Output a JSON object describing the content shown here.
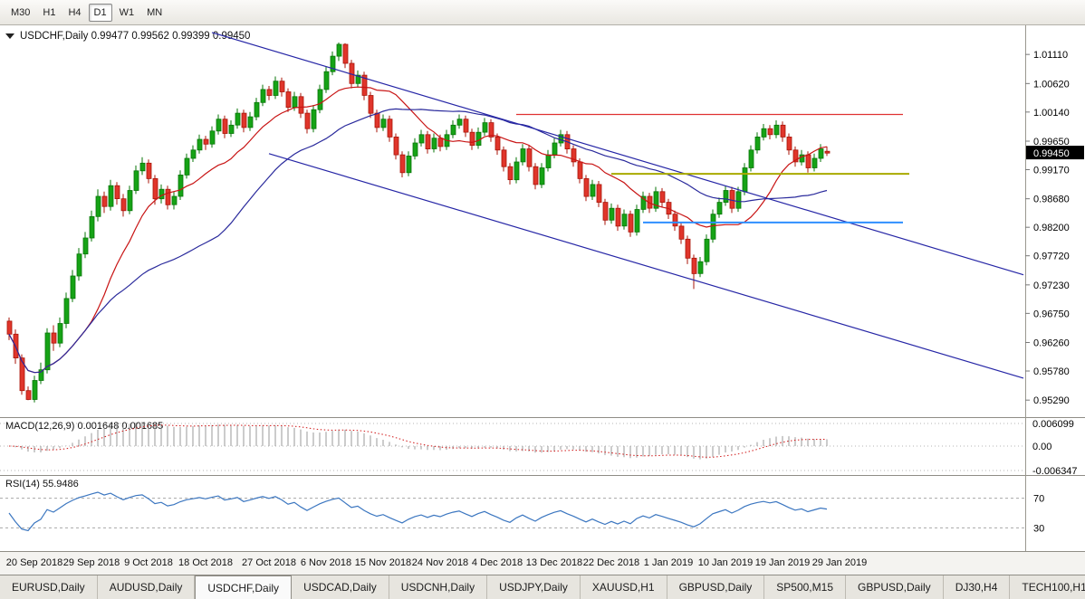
{
  "toolbar": {
    "timeframes": [
      {
        "label": "M30",
        "selected": false
      },
      {
        "label": "H1",
        "selected": false
      },
      {
        "label": "H4",
        "selected": false
      },
      {
        "label": "D1",
        "selected": true
      },
      {
        "label": "W1",
        "selected": false
      },
      {
        "label": "MN",
        "selected": false
      }
    ]
  },
  "chart": {
    "title": "USDCHF,Daily 0.99477 0.99562 0.99399 0.99450",
    "collapse_icon": "▼",
    "current_price": "0.99450",
    "price_axis_labels": [
      "1.01110",
      "1.00620",
      "1.00140",
      "0.99650",
      "0.99170",
      "0.98680",
      "0.98200",
      "0.97720",
      "0.97230",
      "0.96750",
      "0.96260",
      "0.95780",
      "0.95290"
    ],
    "colors": {
      "bull": "#16a316",
      "bull_border": "#077507",
      "bear": "#e0352b",
      "bear_border": "#a81408",
      "ma_fast": "#c81414",
      "ma_slow": "#2a2a9c",
      "trendline": "#2626a6",
      "resistance_line": "#e03232",
      "support_line_yellow": "#a8aa00",
      "support_line_blue": "#2f8fff",
      "macd_histogram": "#9a9a9a",
      "macd_signal": "#d01818",
      "rsi_line": "#3b76c0",
      "badge_bg": "#000000",
      "badge_text": "#ffffff"
    }
  },
  "macd_panel": {
    "label": "MACD(12,26,9) 0.001648 0.001685",
    "scale_labels": [
      "0.006099",
      "0.00",
      "-0.006347"
    ]
  },
  "rsi_panel": {
    "label": "RSI(14) 55.9486"
  },
  "date_axis": {
    "ticks": [
      {
        "label": "20 Sep 2018",
        "bar": 4
      },
      {
        "label": "29 Sep 2018",
        "bar": 13
      },
      {
        "label": "9 Oct 2018",
        "bar": 22
      },
      {
        "label": "18 Oct 2018",
        "bar": 31
      },
      {
        "label": "27 Oct 2018",
        "bar": 41
      },
      {
        "label": "6 Nov 2018",
        "bar": 50
      },
      {
        "label": "15 Nov 2018",
        "bar": 59
      },
      {
        "label": "24 Nov 2018",
        "bar": 68
      },
      {
        "label": "4 Dec 2018",
        "bar": 77
      },
      {
        "label": "13 Dec 2018",
        "bar": 86
      },
      {
        "label": "22 Dec 2018",
        "bar": 95
      },
      {
        "label": "1 Jan 2019",
        "bar": 104
      },
      {
        "label": "10 Jan 2019",
        "bar": 113
      },
      {
        "label": "19 Jan 2019",
        "bar": 122
      },
      {
        "label": "29 Jan 2019",
        "bar": 131
      }
    ]
  },
  "tabs": {
    "scroll_right_icon": "▶",
    "items": [
      {
        "label": "EURUSD,Daily",
        "selected": false
      },
      {
        "label": "AUDUSD,Daily",
        "selected": false
      },
      {
        "label": "USDCHF,Daily",
        "selected": true
      },
      {
        "label": "USDCAD,Daily",
        "selected": false
      },
      {
        "label": "USDCNH,Daily",
        "selected": false
      },
      {
        "label": "USDJPY,Daily",
        "selected": false
      },
      {
        "label": "XAUUSD,H1",
        "selected": false
      },
      {
        "label": "GBPUSD,Daily",
        "selected": false
      },
      {
        "label": "SP500,M15",
        "selected": false
      },
      {
        "label": "GBPUSD,Daily",
        "selected": false
      },
      {
        "label": "DJ30,H4",
        "selected": false
      },
      {
        "label": "TECH100,H1",
        "selected": false
      }
    ]
  },
  "chart_data": {
    "type": "candlestick",
    "symbol": "USDCHF",
    "timeframe": "Daily",
    "title": "USDCHF,Daily",
    "ohlc_current": {
      "open": 0.99477,
      "high": 0.99562,
      "low": 0.99399,
      "close": 0.9945
    },
    "price_axis": {
      "min": 0.9529,
      "max": 1.0111
    },
    "x_axis_dates": [
      "20 Sep 2018",
      "29 Sep 2018",
      "9 Oct 2018",
      "18 Oct 2018",
      "27 Oct 2018",
      "6 Nov 2018",
      "15 Nov 2018",
      "24 Nov 2018",
      "4 Dec 2018",
      "13 Dec 2018",
      "22 Dec 2018",
      "1 Jan 2019",
      "10 Jan 2019",
      "19 Jan 2019",
      "29 Jan 2019"
    ],
    "candles": [
      [
        0.9662,
        0.9668,
        0.963,
        0.964
      ],
      [
        0.964,
        0.9648,
        0.959,
        0.96
      ],
      [
        0.96,
        0.9606,
        0.9538,
        0.9545
      ],
      [
        0.9545,
        0.9552,
        0.9529,
        0.953
      ],
      [
        0.953,
        0.957,
        0.9525,
        0.9562
      ],
      [
        0.9562,
        0.9592,
        0.9556,
        0.958
      ],
      [
        0.958,
        0.965,
        0.9574,
        0.9642
      ],
      [
        0.9642,
        0.9655,
        0.9612,
        0.9625
      ],
      [
        0.9625,
        0.9668,
        0.9618,
        0.9658
      ],
      [
        0.9658,
        0.971,
        0.965,
        0.97
      ],
      [
        0.97,
        0.9748,
        0.9694,
        0.9738
      ],
      [
        0.9738,
        0.9785,
        0.973,
        0.9775
      ],
      [
        0.9775,
        0.9812,
        0.9768,
        0.9802
      ],
      [
        0.9802,
        0.9848,
        0.9796,
        0.9838
      ],
      [
        0.9838,
        0.9884,
        0.983,
        0.9872
      ],
      [
        0.9872,
        0.988,
        0.9844,
        0.9855
      ],
      [
        0.9855,
        0.99,
        0.9848,
        0.989
      ],
      [
        0.989,
        0.9896,
        0.9858,
        0.9868
      ],
      [
        0.9868,
        0.9876,
        0.9838,
        0.9848
      ],
      [
        0.9848,
        0.989,
        0.9842,
        0.9882
      ],
      [
        0.9882,
        0.9924,
        0.9876,
        0.9915
      ],
      [
        0.9915,
        0.9938,
        0.9908,
        0.9928
      ],
      [
        0.9928,
        0.9934,
        0.9894,
        0.9902
      ],
      [
        0.9902,
        0.9908,
        0.9858,
        0.9868
      ],
      [
        0.9868,
        0.9892,
        0.986,
        0.9884
      ],
      [
        0.9884,
        0.989,
        0.985,
        0.9858
      ],
      [
        0.9858,
        0.988,
        0.985,
        0.9872
      ],
      [
        0.9872,
        0.9916,
        0.9866,
        0.9908
      ],
      [
        0.9908,
        0.9944,
        0.9902,
        0.9936
      ],
      [
        0.9936,
        0.9958,
        0.993,
        0.995
      ],
      [
        0.995,
        0.9976,
        0.9944,
        0.9968
      ],
      [
        0.9968,
        0.9974,
        0.995,
        0.996
      ],
      [
        0.996,
        0.999,
        0.9954,
        0.9982
      ],
      [
        0.9982,
        1.001,
        0.9976,
        1.0002
      ],
      [
        1.0002,
        1.0008,
        0.997,
        0.9978
      ],
      [
        0.9978,
        1.0,
        0.9972,
        0.9992
      ],
      [
        0.9992,
        1.002,
        0.9986,
        1.0012
      ],
      [
        1.0012,
        1.0018,
        0.998,
        0.9988
      ],
      [
        0.9988,
        1.0014,
        0.9982,
        1.0006
      ],
      [
        1.0006,
        1.0038,
        1.0,
        1.003
      ],
      [
        1.003,
        1.006,
        1.0024,
        1.0052
      ],
      [
        1.0052,
        1.0058,
        1.0034,
        1.0042
      ],
      [
        1.0042,
        1.0074,
        1.0036,
        1.0066
      ],
      [
        1.0066,
        1.0072,
        1.004,
        1.0048
      ],
      [
        1.0048,
        1.0054,
        1.0014,
        1.0022
      ],
      [
        1.0022,
        1.0048,
        1.0016,
        1.004
      ],
      [
        1.004,
        1.0046,
        1.0004,
        1.0012
      ],
      [
        1.0012,
        1.0018,
        0.9978,
        0.9986
      ],
      [
        0.9986,
        1.0026,
        0.998,
        1.0018
      ],
      [
        1.0018,
        1.006,
        1.0012,
        1.0052
      ],
      [
        1.0052,
        1.009,
        1.0046,
        1.0082
      ],
      [
        1.0082,
        1.0116,
        1.0076,
        1.0108
      ],
      [
        1.0108,
        1.0131,
        1.01,
        1.0128
      ],
      [
        1.0128,
        1.013,
        1.0088,
        1.0096
      ],
      [
        1.0096,
        1.0102,
        1.0054,
        1.0062
      ],
      [
        1.0062,
        1.0084,
        1.0056,
        1.0076
      ],
      [
        1.0076,
        1.0082,
        1.0034,
        1.0042
      ],
      [
        1.0042,
        1.0048,
        1.0004,
        1.0012
      ],
      [
        1.0012,
        1.0018,
        0.998,
        0.9988
      ],
      [
        0.9988,
        1.001,
        0.9982,
        1.0002
      ],
      [
        1.0002,
        1.0008,
        0.9964,
        0.9972
      ],
      [
        0.9972,
        0.9978,
        0.9934,
        0.9942
      ],
      [
        0.9942,
        0.9948,
        0.9904,
        0.9912
      ],
      [
        0.9912,
        0.9948,
        0.9906,
        0.994
      ],
      [
        0.994,
        0.997,
        0.9934,
        0.9962
      ],
      [
        0.9962,
        0.9984,
        0.9956,
        0.9976
      ],
      [
        0.9976,
        0.9982,
        0.9944,
        0.9952
      ],
      [
        0.9952,
        0.9978,
        0.9946,
        0.997
      ],
      [
        0.997,
        0.9976,
        0.9948,
        0.9956
      ],
      [
        0.9956,
        0.9984,
        0.995,
        0.9976
      ],
      [
        0.9976,
        1.0,
        0.997,
        0.9992
      ],
      [
        0.9992,
        1.001,
        0.9986,
        1.0002
      ],
      [
        1.0002,
        1.0008,
        0.9972,
        0.998
      ],
      [
        0.998,
        0.9986,
        0.995,
        0.9958
      ],
      [
        0.9958,
        0.9988,
        0.9952,
        0.998
      ],
      [
        0.998,
        1.0004,
        0.9974,
        0.9996
      ],
      [
        0.9996,
        1.0002,
        0.9964,
        0.9972
      ],
      [
        0.9972,
        0.9978,
        0.9942,
        0.995
      ],
      [
        0.995,
        0.9956,
        0.9914,
        0.9922
      ],
      [
        0.9922,
        0.9928,
        0.9892,
        0.99
      ],
      [
        0.99,
        0.9938,
        0.9894,
        0.993
      ],
      [
        0.993,
        0.996,
        0.9924,
        0.9952
      ],
      [
        0.9952,
        0.9958,
        0.9914,
        0.9922
      ],
      [
        0.9922,
        0.9928,
        0.9884,
        0.9892
      ],
      [
        0.9892,
        0.9928,
        0.9886,
        0.992
      ],
      [
        0.992,
        0.995,
        0.9914,
        0.9942
      ],
      [
        0.9942,
        0.997,
        0.9936,
        0.9962
      ],
      [
        0.9962,
        0.9984,
        0.9956,
        0.9976
      ],
      [
        0.9976,
        0.9982,
        0.9944,
        0.9952
      ],
      [
        0.9952,
        0.9958,
        0.9922,
        0.993
      ],
      [
        0.993,
        0.9936,
        0.9894,
        0.9902
      ],
      [
        0.9902,
        0.9908,
        0.9864,
        0.9872
      ],
      [
        0.9872,
        0.99,
        0.9866,
        0.9892
      ],
      [
        0.9892,
        0.9898,
        0.9854,
        0.9862
      ],
      [
        0.9862,
        0.9868,
        0.9824,
        0.9832
      ],
      [
        0.9832,
        0.986,
        0.9826,
        0.9852
      ],
      [
        0.9852,
        0.9858,
        0.9814,
        0.9822
      ],
      [
        0.9822,
        0.985,
        0.9816,
        0.9842
      ],
      [
        0.9842,
        0.9848,
        0.9804,
        0.9812
      ],
      [
        0.9812,
        0.9858,
        0.9806,
        0.985
      ],
      [
        0.985,
        0.988,
        0.9844,
        0.9872
      ],
      [
        0.9872,
        0.9878,
        0.9844,
        0.9852
      ],
      [
        0.9852,
        0.9888,
        0.9846,
        0.988
      ],
      [
        0.988,
        0.9886,
        0.9854,
        0.9862
      ],
      [
        0.9862,
        0.9868,
        0.9834,
        0.9842
      ],
      [
        0.9842,
        0.9848,
        0.9814,
        0.9822
      ],
      [
        0.9822,
        0.9828,
        0.9792,
        0.98
      ],
      [
        0.98,
        0.9806,
        0.9758,
        0.9768
      ],
      [
        0.9768,
        0.9774,
        0.9716,
        0.9742
      ],
      [
        0.9742,
        0.977,
        0.9736,
        0.9762
      ],
      [
        0.9762,
        0.9808,
        0.9756,
        0.98
      ],
      [
        0.98,
        0.985,
        0.9794,
        0.9842
      ],
      [
        0.9842,
        0.987,
        0.9836,
        0.9862
      ],
      [
        0.9862,
        0.989,
        0.9856,
        0.9882
      ],
      [
        0.9882,
        0.9888,
        0.9844,
        0.9852
      ],
      [
        0.9852,
        0.9888,
        0.9846,
        0.988
      ],
      [
        0.988,
        0.9928,
        0.9874,
        0.992
      ],
      [
        0.992,
        0.9958,
        0.9914,
        0.995
      ],
      [
        0.995,
        0.998,
        0.9944,
        0.9972
      ],
      [
        0.9972,
        0.9994,
        0.9966,
        0.9986
      ],
      [
        0.9986,
        0.9992,
        0.9968,
        0.9976
      ],
      [
        0.9976,
        1.0,
        0.997,
        0.9992
      ],
      [
        0.9992,
        0.9998,
        0.9964,
        0.9972
      ],
      [
        0.9972,
        0.9978,
        0.9942,
        0.995
      ],
      [
        0.995,
        0.9956,
        0.9922,
        0.993
      ],
      [
        0.993,
        0.995,
        0.9924,
        0.9942
      ],
      [
        0.9942,
        0.9948,
        0.9912,
        0.992
      ],
      [
        0.992,
        0.9944,
        0.9914,
        0.9936
      ],
      [
        0.9936,
        0.996,
        0.993,
        0.9952
      ],
      [
        0.9948,
        0.9956,
        0.994,
        0.9945
      ]
    ],
    "overlays": {
      "moving_averages": [
        {
          "period": 13,
          "color_key": "ma_fast"
        },
        {
          "period": 34,
          "color_key": "ma_slow"
        }
      ],
      "trend_channel": [
        {
          "from": {
            "bar": 32,
            "price": 1.0148
          },
          "to": {
            "bar": 160,
            "price": 0.974
          }
        },
        {
          "from": {
            "bar": 41,
            "price": 0.9944
          },
          "to": {
            "bar": 160,
            "price": 0.9566
          }
        }
      ],
      "horizontal_lines": [
        {
          "price": 1.001,
          "color_key": "resistance_line",
          "from_bar": 80,
          "to_bar": 141,
          "width": 1.2
        },
        {
          "price": 0.991,
          "color_key": "support_line_yellow",
          "from_bar": 95,
          "to_bar": 142,
          "width": 2
        },
        {
          "price": 0.9828,
          "color_key": "support_line_blue",
          "from_bar": 100,
          "to_bar": 141,
          "width": 2
        }
      ]
    },
    "indicators": {
      "macd": {
        "fast": 12,
        "slow": 26,
        "signal": 9,
        "display_values": [
          0.001648,
          0.001685
        ],
        "scale_max": 0.006099,
        "scale_min": -0.006347
      },
      "rsi": {
        "period": 14,
        "display_value": 55.9486,
        "levels": [
          70,
          30
        ]
      }
    }
  }
}
